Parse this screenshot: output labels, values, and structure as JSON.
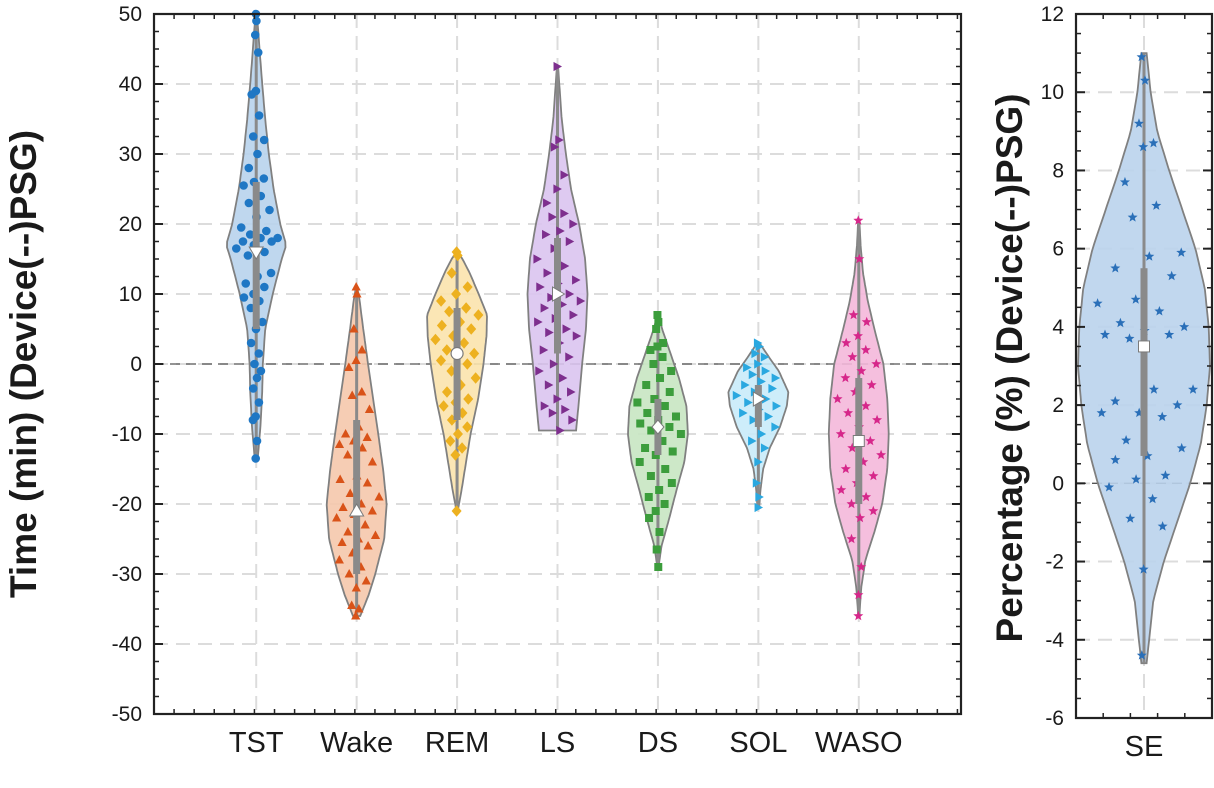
{
  "chart_data": [
    {
      "type": "violin",
      "ylabel": "Time (min) (Device(--)PSG)",
      "ylim": [
        -50,
        50
      ],
      "yticks": [
        -50,
        -40,
        -30,
        -20,
        -10,
        0,
        10,
        20,
        30,
        40,
        50
      ],
      "grid": true,
      "zero_line": 0,
      "series": [
        {
          "name": "TST",
          "color": "#1f77c4",
          "fill": "#b8d3ec",
          "marker": "circle",
          "median": 16,
          "q1": 5,
          "q3": 26,
          "whisker_low": -13.5,
          "whisker_high": 50,
          "profile": [
            [
              -13.5,
              0.05
            ],
            [
              -9,
              0.14
            ],
            [
              -4,
              0.2
            ],
            [
              0,
              0.22
            ],
            [
              5,
              0.3
            ],
            [
              10,
              0.55
            ],
            [
              15,
              0.85
            ],
            [
              17,
              1.0
            ],
            [
              20,
              0.8
            ],
            [
              25,
              0.58
            ],
            [
              30,
              0.42
            ],
            [
              35,
              0.3
            ],
            [
              40,
              0.2
            ],
            [
              45,
              0.11
            ],
            [
              48,
              0.06
            ],
            [
              50,
              0.01
            ]
          ],
          "points": [
            50,
            49,
            47,
            44.5,
            39,
            38.5,
            35.5,
            32.5,
            32,
            30,
            28,
            26.5,
            26,
            25.5,
            24,
            23,
            22,
            21,
            19.5,
            19,
            18.5,
            18,
            18,
            17.5,
            17.5,
            17,
            16.5,
            16,
            15.5,
            13,
            12.5,
            11.5,
            11,
            10,
            9.5,
            9,
            8,
            6,
            5,
            3,
            1.5,
            0,
            -1,
            -2,
            -3.5,
            -5.5,
            -7.5,
            -8,
            -11,
            -13.5
          ]
        },
        {
          "name": "Wake",
          "color": "#d95319",
          "fill": "#f5c8ac",
          "marker": "triangle",
          "median": -21,
          "q1": -30,
          "q3": -8,
          "whisker_low": -36,
          "whisker_high": 11,
          "profile": [
            [
              -36,
              0.12
            ],
            [
              -33,
              0.4
            ],
            [
              -30,
              0.62
            ],
            [
              -25,
              0.92
            ],
            [
              -20,
              1.0
            ],
            [
              -15,
              0.88
            ],
            [
              -10,
              0.72
            ],
            [
              -5,
              0.55
            ],
            [
              0,
              0.38
            ],
            [
              5,
              0.22
            ],
            [
              9,
              0.1
            ],
            [
              11,
              0.02
            ]
          ],
          "points": [
            11,
            10,
            5,
            2,
            0.5,
            -0.5,
            -4,
            -4.5,
            -6.5,
            -9,
            -10,
            -10.5,
            -11,
            -11.5,
            -12,
            -13,
            -14,
            -16,
            -16.5,
            -17,
            -18.5,
            -19,
            -20,
            -20.5,
            -21,
            -21.5,
            -22,
            -23,
            -24,
            -24.5,
            -25,
            -25.5,
            -26,
            -27,
            -28,
            -29,
            -30,
            -31,
            -32,
            -34.5,
            -35,
            -36
          ]
        },
        {
          "name": "REM",
          "color": "#edb120",
          "fill": "#fbe3ad",
          "marker": "diamond",
          "median": 1.5,
          "q1": -8,
          "q3": 8,
          "whisker_low": -21,
          "whisker_high": 16,
          "profile": [
            [
              -21,
              0.02
            ],
            [
              -18,
              0.15
            ],
            [
              -14,
              0.3
            ],
            [
              -10,
              0.45
            ],
            [
              -5,
              0.7
            ],
            [
              0,
              0.88
            ],
            [
              4,
              0.98
            ],
            [
              7,
              1.0
            ],
            [
              10,
              0.72
            ],
            [
              13,
              0.42
            ],
            [
              15,
              0.18
            ],
            [
              16,
              0.02
            ]
          ],
          "points": [
            16,
            15.5,
            13,
            11,
            10,
            9,
            8,
            7.5,
            7,
            6,
            5.5,
            5,
            4,
            3.5,
            3,
            2,
            1.5,
            1,
            0.5,
            0,
            -1,
            -2,
            -3,
            -4,
            -5,
            -5.5,
            -6,
            -7,
            -8,
            -9,
            -10,
            -11,
            -12,
            -13,
            -21
          ]
        },
        {
          "name": "LS",
          "color": "#7e2f8e",
          "fill": "#dac4f0",
          "marker": "triangle-right",
          "median": 10,
          "q1": 1.5,
          "q3": 18,
          "whisker_low": -9.5,
          "whisker_high": 42.5,
          "profile": [
            [
              -9.5,
              0.62
            ],
            [
              -5,
              0.72
            ],
            [
              0,
              0.82
            ],
            [
              5,
              0.95
            ],
            [
              10,
              1.0
            ],
            [
              15,
              0.92
            ],
            [
              20,
              0.72
            ],
            [
              25,
              0.45
            ],
            [
              30,
              0.28
            ],
            [
              35,
              0.14
            ],
            [
              40,
              0.06
            ],
            [
              42.5,
              0.02
            ]
          ],
          "points": [
            42.5,
            32,
            31,
            27,
            25,
            23,
            21.5,
            21,
            20,
            19,
            18.5,
            17.5,
            16.5,
            15,
            14,
            13,
            12,
            11.5,
            11,
            10,
            9.5,
            9,
            8.5,
            8,
            7,
            6.5,
            6,
            5,
            4.5,
            4,
            3,
            2,
            1,
            0,
            -1,
            -2,
            -3,
            -4,
            -5,
            -6,
            -6.5,
            -7,
            -8,
            -9.5
          ]
        },
        {
          "name": "DS",
          "color": "#3c9d3c",
          "fill": "#c8e6c2",
          "marker": "square",
          "median": -9,
          "q1": -13,
          "q3": -5,
          "whisker_low": -29,
          "whisker_high": 7,
          "profile": [
            [
              -29,
              0.02
            ],
            [
              -26,
              0.12
            ],
            [
              -22,
              0.38
            ],
            [
              -18,
              0.62
            ],
            [
              -14,
              0.88
            ],
            [
              -10,
              1.0
            ],
            [
              -6,
              0.95
            ],
            [
              -2,
              0.7
            ],
            [
              2,
              0.38
            ],
            [
              5,
              0.14
            ],
            [
              7,
              0.02
            ]
          ],
          "points": [
            7,
            6,
            5,
            3,
            2.5,
            2,
            1,
            0,
            -1,
            -2,
            -3,
            -4,
            -5,
            -5.5,
            -6,
            -7,
            -7.5,
            -8,
            -8.5,
            -9,
            -9.5,
            -10,
            -11,
            -12,
            -12.5,
            -13,
            -14,
            -15,
            -16,
            -17,
            -18,
            -19,
            -20,
            -21,
            -22,
            -24,
            -26.5,
            -29
          ]
        },
        {
          "name": "SOL",
          "color": "#2aa8e0",
          "fill": "#c9ebfa",
          "marker": "triangle-right",
          "median": -5,
          "q1": -9,
          "q3": -3,
          "whisker_low": -20.5,
          "whisker_high": 3,
          "profile": [
            [
              -20.5,
              0.03
            ],
            [
              -18,
              0.07
            ],
            [
              -15,
              0.16
            ],
            [
              -12,
              0.38
            ],
            [
              -9,
              0.72
            ],
            [
              -6,
              0.95
            ],
            [
              -4,
              1.0
            ],
            [
              -1,
              0.68
            ],
            [
              1,
              0.35
            ],
            [
              3,
              0.04
            ]
          ],
          "points": [
            3,
            2.5,
            1.5,
            1,
            0,
            -0.5,
            -1,
            -1.5,
            -2,
            -2.5,
            -3,
            -3.5,
            -4,
            -4.5,
            -5,
            -5.5,
            -6,
            -6.5,
            -7,
            -7.5,
            -8,
            -9,
            -10,
            -11,
            -12,
            -14,
            -17,
            -19,
            -20.5
          ]
        },
        {
          "name": "WASO",
          "color": "#d6278a",
          "fill": "#f4b8da",
          "marker": "star",
          "median": -11,
          "q1": -20,
          "q3": -2,
          "whisker_low": -36,
          "whisker_high": 20.5,
          "profile": [
            [
              -36,
              0.02
            ],
            [
              -32,
              0.08
            ],
            [
              -28,
              0.22
            ],
            [
              -24,
              0.52
            ],
            [
              -20,
              0.78
            ],
            [
              -15,
              0.95
            ],
            [
              -10,
              1.0
            ],
            [
              -5,
              0.95
            ],
            [
              0,
              0.82
            ],
            [
              5,
              0.52
            ],
            [
              9,
              0.3
            ],
            [
              13,
              0.14
            ],
            [
              17,
              0.06
            ],
            [
              20.5,
              0.02
            ]
          ],
          "points": [
            20.5,
            15,
            7,
            6,
            4,
            3,
            2,
            1,
            0,
            -1,
            -2,
            -3,
            -4,
            -5,
            -6,
            -7,
            -8,
            -9,
            -10,
            -11,
            -12,
            -13,
            -14,
            -15,
            -16,
            -17,
            -18,
            -19,
            -20,
            -21,
            -22,
            -25,
            -29,
            -33,
            -36
          ]
        }
      ]
    },
    {
      "type": "violin",
      "ylabel": "Percentage (%) (Device(--)PSG)",
      "ylim": [
        -6,
        12
      ],
      "yticks": [
        -6,
        -4,
        -2,
        0,
        2,
        4,
        6,
        8,
        10,
        12
      ],
      "grid": true,
      "zero_line": 0,
      "series": [
        {
          "name": "SE",
          "color": "#2a6fb8",
          "fill": "#bad3ec",
          "marker": "star",
          "median": 3.5,
          "q1": 0.7,
          "q3": 5.5,
          "whisker_low": -4.6,
          "whisker_high": 11,
          "profile": [
            [
              -4.6,
              0.04
            ],
            [
              -3,
              0.14
            ],
            [
              -2,
              0.3
            ],
            [
              -1,
              0.5
            ],
            [
              0,
              0.7
            ],
            [
              1,
              0.86
            ],
            [
              2,
              0.95
            ],
            [
              3,
              1.0
            ],
            [
              4,
              0.98
            ],
            [
              5,
              0.92
            ],
            [
              6,
              0.78
            ],
            [
              7,
              0.58
            ],
            [
              8,
              0.38
            ],
            [
              9,
              0.2
            ],
            [
              10,
              0.1
            ],
            [
              11,
              0.04
            ]
          ],
          "points": [
            10.9,
            10.3,
            9.2,
            8.7,
            8.6,
            7.7,
            7.1,
            6.8,
            5.9,
            5.8,
            5.5,
            5.3,
            4.7,
            4.6,
            4.4,
            4.1,
            4.0,
            3.9,
            3.8,
            3.8,
            3.7,
            2.4,
            2.4,
            2.1,
            2.0,
            1.8,
            1.8,
            1.7,
            1.1,
            0.9,
            0.7,
            0.6,
            0.2,
            0.1,
            -0.1,
            -0.4,
            -0.9,
            -1.1,
            -2.2,
            -4.4
          ]
        }
      ]
    }
  ]
}
